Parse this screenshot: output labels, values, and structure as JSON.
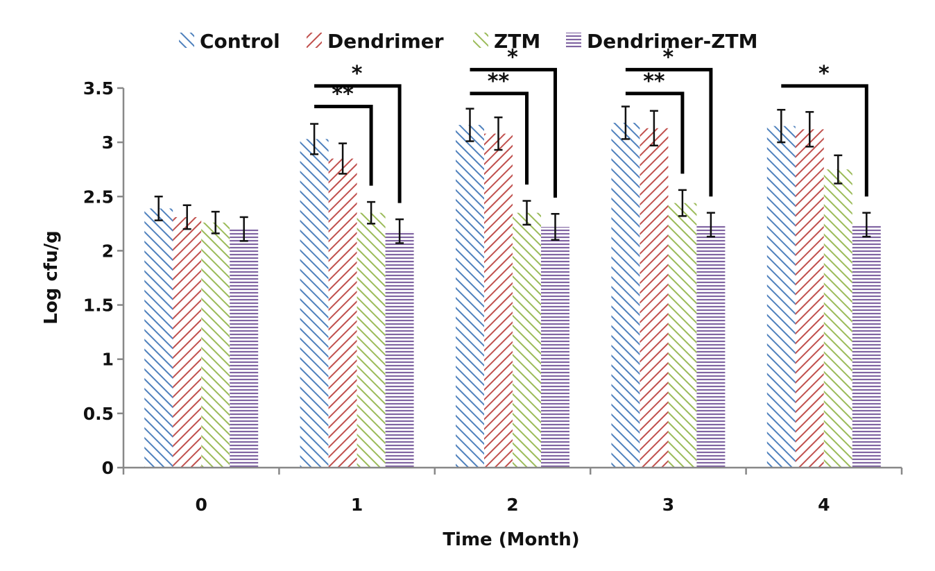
{
  "chart_data": {
    "type": "bar",
    "title": "",
    "xlabel": "Time (Month)",
    "ylabel": "Log cfu/g",
    "ylim": [
      0,
      3.5
    ],
    "yticks": [
      "0",
      "0.5",
      "1",
      "1.5",
      "2",
      "2.5",
      "3",
      "3.5"
    ],
    "categories": [
      "0",
      "1",
      "2",
      "3",
      "4"
    ],
    "legend_position": "top",
    "grid": false,
    "series": [
      {
        "name": "Control",
        "color": "#4f81bd",
        "pattern": "back-diagonal",
        "values": [
          2.39,
          3.03,
          3.16,
          3.18,
          3.15
        ],
        "errors": [
          0.11,
          0.14,
          0.15,
          0.15,
          0.15
        ]
      },
      {
        "name": "Dendrimer",
        "color": "#c0504d",
        "pattern": "forward-diagonal",
        "values": [
          2.31,
          2.85,
          3.08,
          3.13,
          3.12
        ],
        "errors": [
          0.11,
          0.14,
          0.15,
          0.16,
          0.16
        ]
      },
      {
        "name": "ZTM",
        "color": "#9bbb59",
        "pattern": "back-diagonal",
        "values": [
          2.26,
          2.35,
          2.35,
          2.44,
          2.75
        ],
        "errors": [
          0.1,
          0.1,
          0.11,
          0.12,
          0.13
        ]
      },
      {
        "name": "Dendrimer-ZTM",
        "color": "#8064a2",
        "pattern": "horizontal",
        "values": [
          2.2,
          2.18,
          2.22,
          2.24,
          2.24
        ],
        "errors": [
          0.11,
          0.11,
          0.12,
          0.11,
          0.11
        ]
      }
    ],
    "annotations": [
      {
        "category": "1",
        "from_series": 0,
        "to_series": 2,
        "label": "**",
        "top": 3.33
      },
      {
        "category": "1",
        "from_series": 0,
        "to_series": 3,
        "label": "*",
        "top": 3.52
      },
      {
        "category": "2",
        "from_series": 0,
        "to_series": 2,
        "label": "**",
        "top": 3.45
      },
      {
        "category": "2",
        "from_series": 0,
        "to_series": 3,
        "label": "*",
        "top": 3.67
      },
      {
        "category": "3",
        "from_series": 0,
        "to_series": 2,
        "label": "**",
        "top": 3.45
      },
      {
        "category": "3",
        "from_series": 0,
        "to_series": 3,
        "label": "*",
        "top": 3.67
      },
      {
        "category": "4",
        "from_series": 0,
        "to_series": 3,
        "label": "*",
        "top": 3.52
      }
    ]
  }
}
